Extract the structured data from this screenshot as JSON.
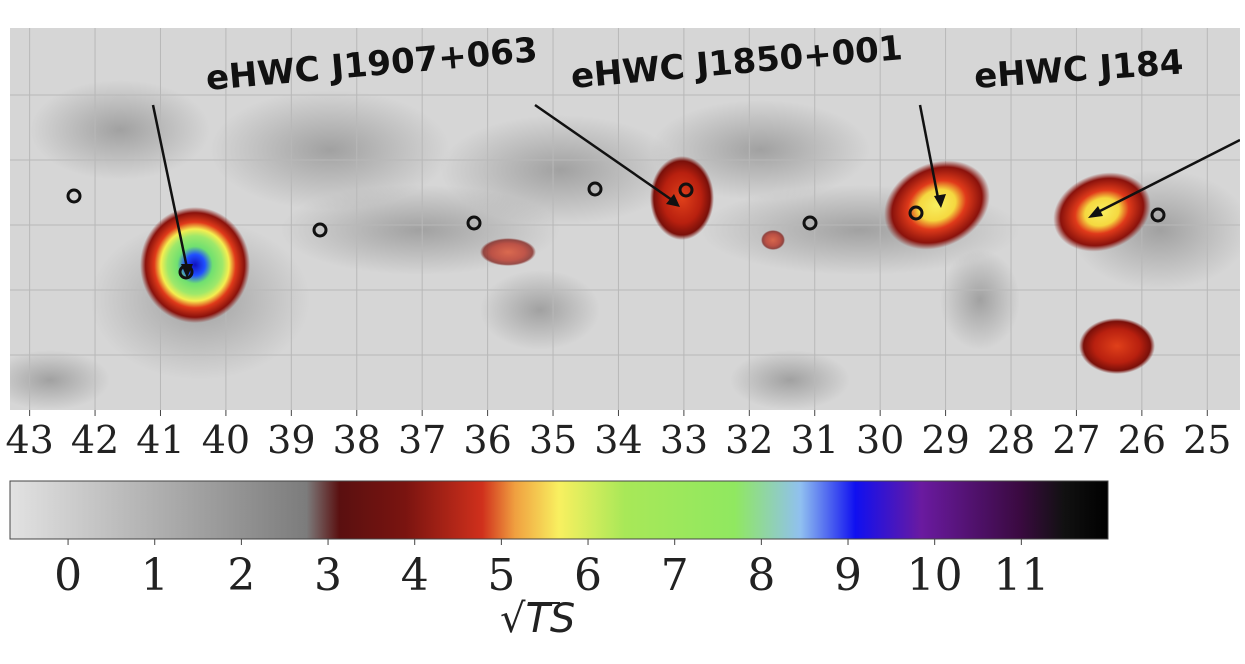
{
  "chart_data": {
    "type": "skymap",
    "annotations": [
      "eHWC J1907+063",
      "eHWC J1850+001",
      "eHWC J184"
    ],
    "xlim": [
      43.3,
      24.5
    ],
    "xticks": [
      43,
      42,
      41,
      40,
      39,
      38,
      37,
      36,
      35,
      34,
      33,
      32,
      31,
      30,
      29,
      28,
      27,
      26,
      25
    ],
    "grid": true,
    "colorbar": {
      "label": "√TS",
      "lim": [
        -0.67,
        12.0
      ],
      "ticks": [
        0,
        1,
        2,
        3,
        4,
        5,
        6,
        7,
        8,
        9,
        10,
        11
      ]
    }
  }
}
